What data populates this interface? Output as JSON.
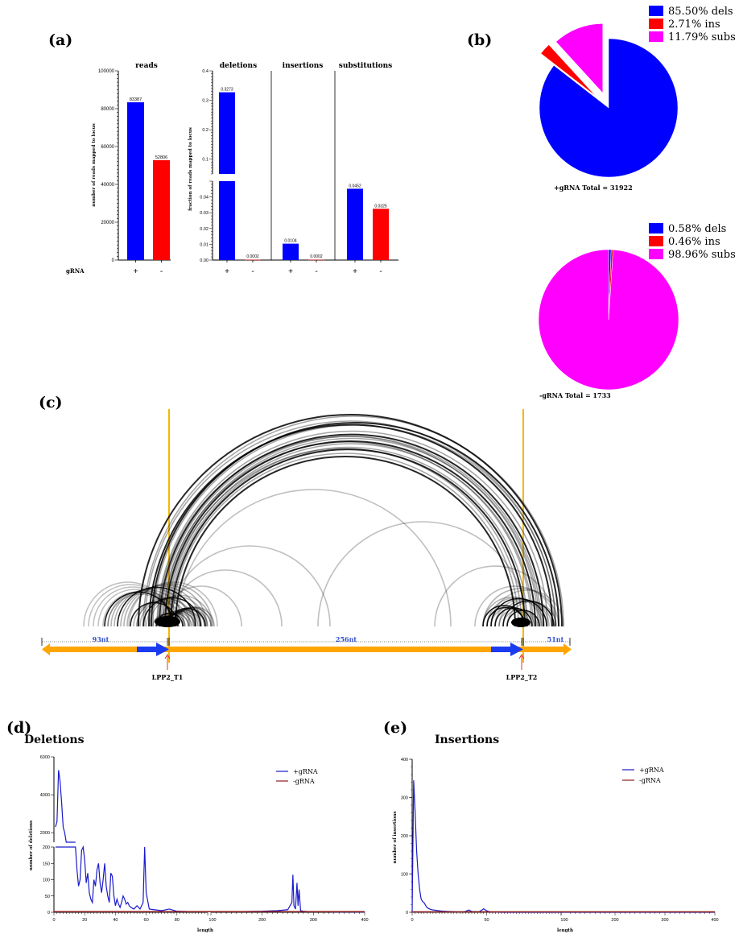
{
  "panels": {
    "a": "(a)",
    "b": "(b)",
    "c": "(c)",
    "d": "(d)",
    "e": "(e)"
  },
  "colors": {
    "plus": "#0000ff",
    "minus": "#ff0000",
    "subs": "#ff00ff",
    "orange": "#ffa500",
    "gold": "#f5b800",
    "blue_line": "#1a1acc",
    "dark_red": "#8b1a1a"
  },
  "chart_data": [
    {
      "id": "reads",
      "type": "bar",
      "title": "reads",
      "ylabel": "number of reads mapped to locus",
      "xlabel": "gRNA",
      "categories": [
        "+",
        "-"
      ],
      "values": [
        83387,
        52806
      ],
      "data_labels": [
        "83387",
        "52806"
      ],
      "ylim": [
        0,
        100000
      ],
      "yticks": [
        "0",
        "20000",
        "40000",
        "60000",
        "80000",
        "100000"
      ],
      "colors": [
        "#0000ff",
        "#ff0000"
      ]
    },
    {
      "id": "fractions",
      "type": "bar",
      "ylabel": "fraction of reads mapped to locus",
      "ylim_low": [
        0,
        0.05
      ],
      "ylim_high": [
        0.05,
        0.4
      ],
      "yticks_low": [
        "0.00",
        "0.01",
        "0.02",
        "0.03",
        "0.04"
      ],
      "yticks_high": [
        "0.1",
        "0.2",
        "0.3",
        "0.4"
      ],
      "groups": [
        {
          "title": "deletions",
          "categories": [
            "+",
            "-"
          ],
          "values": [
            0.3273,
            0.0002
          ],
          "data_labels": [
            "0.3273",
            "0.0002"
          ],
          "colors": [
            "#0000ff",
            "#ff0000"
          ]
        },
        {
          "title": "insertions",
          "categories": [
            "+",
            "-"
          ],
          "values": [
            0.0104,
            0.0002
          ],
          "data_labels": [
            "0.0104",
            "0.0002"
          ],
          "colors": [
            "#0000ff",
            "#ff0000"
          ]
        },
        {
          "title": "substitutions",
          "categories": [
            "+",
            "-"
          ],
          "values": [
            0.0452,
            0.0325
          ],
          "data_labels": [
            "0.0452",
            "0.0325"
          ],
          "colors": [
            "#0000ff",
            "#ff0000"
          ]
        }
      ]
    },
    {
      "id": "pie_plus",
      "type": "pie",
      "caption": "+gRNA  Total =  31922",
      "slices": [
        {
          "label": "85.50%  dels",
          "value": 85.5,
          "color": "#0000ff"
        },
        {
          "label": "2.71%  ins",
          "value": 2.71,
          "color": "#ff0000"
        },
        {
          "label": "11.79%  subs",
          "value": 11.79,
          "color": "#ff00ff"
        }
      ]
    },
    {
      "id": "pie_minus",
      "type": "pie",
      "caption": "-gRNA  Total =  1733",
      "slices": [
        {
          "label": "0.58%  dels",
          "value": 0.58,
          "color": "#0000ff"
        },
        {
          "label": "0.46%  ins",
          "value": 0.46,
          "color": "#ff0000"
        },
        {
          "label": "98.96%  subs",
          "value": 98.96,
          "color": "#ff00ff"
        }
      ]
    },
    {
      "id": "deletions_length",
      "type": "line",
      "title": "Deletions",
      "xlabel": "length",
      "ylabel": "number of deletions",
      "yticks_high": [
        "2000",
        "4000",
        "6000"
      ],
      "yticks_low": [
        "0",
        "50",
        "100",
        "150",
        "200"
      ],
      "xticks": [
        "0",
        "20",
        "40",
        "60",
        "80",
        "100",
        "200",
        "300",
        "400"
      ],
      "series": [
        {
          "name": "+gRNA",
          "color": "#1a1acc",
          "x": [
            1,
            2,
            3,
            4,
            5,
            6,
            7,
            8,
            9,
            10,
            11,
            12,
            13,
            14,
            15,
            16,
            17,
            18,
            19,
            20,
            21,
            22,
            23,
            24,
            25,
            26,
            27,
            28,
            29,
            30,
            31,
            32,
            33,
            34,
            35,
            36,
            37,
            38,
            39,
            40,
            41,
            42,
            43,
            44,
            45,
            46,
            47,
            48,
            49,
            50,
            52,
            54,
            56,
            58,
            59,
            60,
            62,
            65,
            70,
            75,
            80,
            90,
            100,
            150,
            200,
            230,
            250,
            258,
            260,
            262,
            265,
            268,
            270,
            272,
            275,
            280,
            290,
            300,
            350,
            400
          ],
          "y": [
            2300,
            2600,
            5300,
            4700,
            3600,
            2300,
            2000,
            1500,
            1300,
            1000,
            820,
            600,
            400,
            210,
            130,
            80,
            100,
            190,
            210,
            160,
            90,
            120,
            60,
            40,
            30,
            100,
            80,
            130,
            150,
            90,
            60,
            100,
            150,
            80,
            50,
            30,
            120,
            110,
            50,
            20,
            40,
            25,
            15,
            30,
            50,
            40,
            25,
            30,
            20,
            15,
            10,
            20,
            10,
            30,
            230,
            60,
            10,
            8,
            5,
            10,
            3,
            2,
            2,
            2,
            3,
            5,
            8,
            30,
            115,
            20,
            10,
            90,
            20,
            70,
            5,
            3,
            2,
            2,
            1,
            1
          ]
        },
        {
          "name": "-gRNA",
          "color": "#8b1a1a",
          "x": [
            0,
            400
          ],
          "y": [
            2,
            2
          ]
        }
      ]
    },
    {
      "id": "insertions_length",
      "type": "line",
      "title": "Insertions",
      "xlabel": "length",
      "ylabel": "number of insertions",
      "ylim": [
        0,
        400
      ],
      "yticks": [
        "0",
        "100",
        "200",
        "300",
        "400"
      ],
      "xticks": [
        "0",
        "50",
        "100",
        "200",
        "300",
        "400"
      ],
      "series": [
        {
          "name": "+gRNA",
          "color": "#1a1acc",
          "x": [
            0,
            1,
            2,
            3,
            4,
            5,
            6,
            7,
            8,
            9,
            10,
            12,
            14,
            16,
            18,
            20,
            25,
            30,
            35,
            38,
            40,
            45,
            48,
            50,
            52,
            60,
            80,
            100,
            200,
            400
          ],
          "y": [
            0,
            345,
            260,
            160,
            100,
            60,
            35,
            28,
            25,
            18,
            12,
            8,
            6,
            5,
            4,
            3,
            2,
            1,
            1,
            6,
            2,
            1,
            9,
            4,
            1,
            0,
            0,
            0,
            0,
            0
          ]
        },
        {
          "name": "-gRNA",
          "color": "#8b1a1a",
          "x": [
            0,
            400
          ],
          "y": [
            1,
            1
          ]
        }
      ]
    }
  ],
  "arc_diagram": {
    "label_93": "93nt",
    "label_256": "256nt",
    "label_51": "51nt",
    "target1": "LPP2_T1",
    "target2": "LPP2_T2"
  }
}
